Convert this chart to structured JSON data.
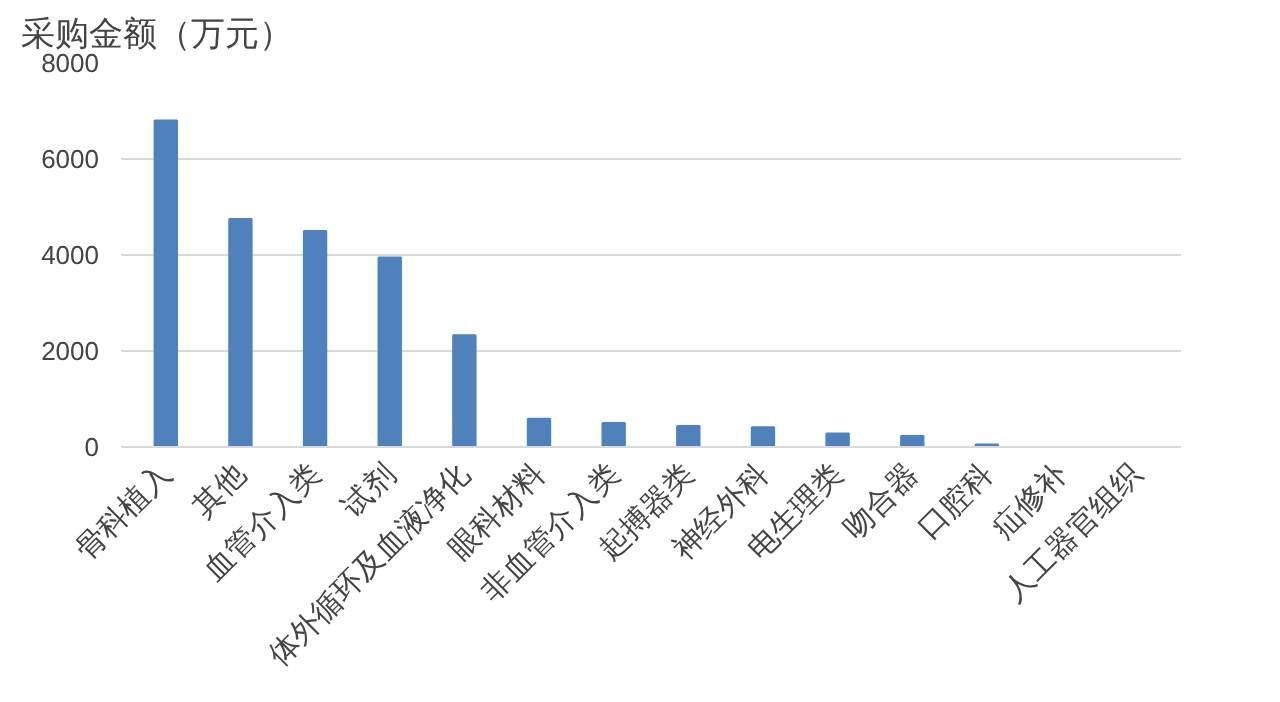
{
  "chart_data": {
    "type": "bar",
    "ylabel": "采购金额（万元）",
    "categories": [
      "骨科植入",
      "其他",
      "血管介入类",
      "试剂",
      "体外循环及血液净化",
      "眼科材料",
      "非血管介入类",
      "起搏器类",
      "神经外科",
      "电生理类",
      "吻合器",
      "口腔科",
      "疝修补",
      "人工器官组织"
    ],
    "values": [
      6800,
      4750,
      4500,
      3950,
      2330,
      590,
      500,
      440,
      410,
      280,
      230,
      50,
      null,
      null
    ],
    "color": "#4f81bd",
    "ylim": [
      0,
      8000
    ],
    "yticks": [
      0,
      2000,
      4000,
      6000,
      8000
    ],
    "grid": "y"
  }
}
